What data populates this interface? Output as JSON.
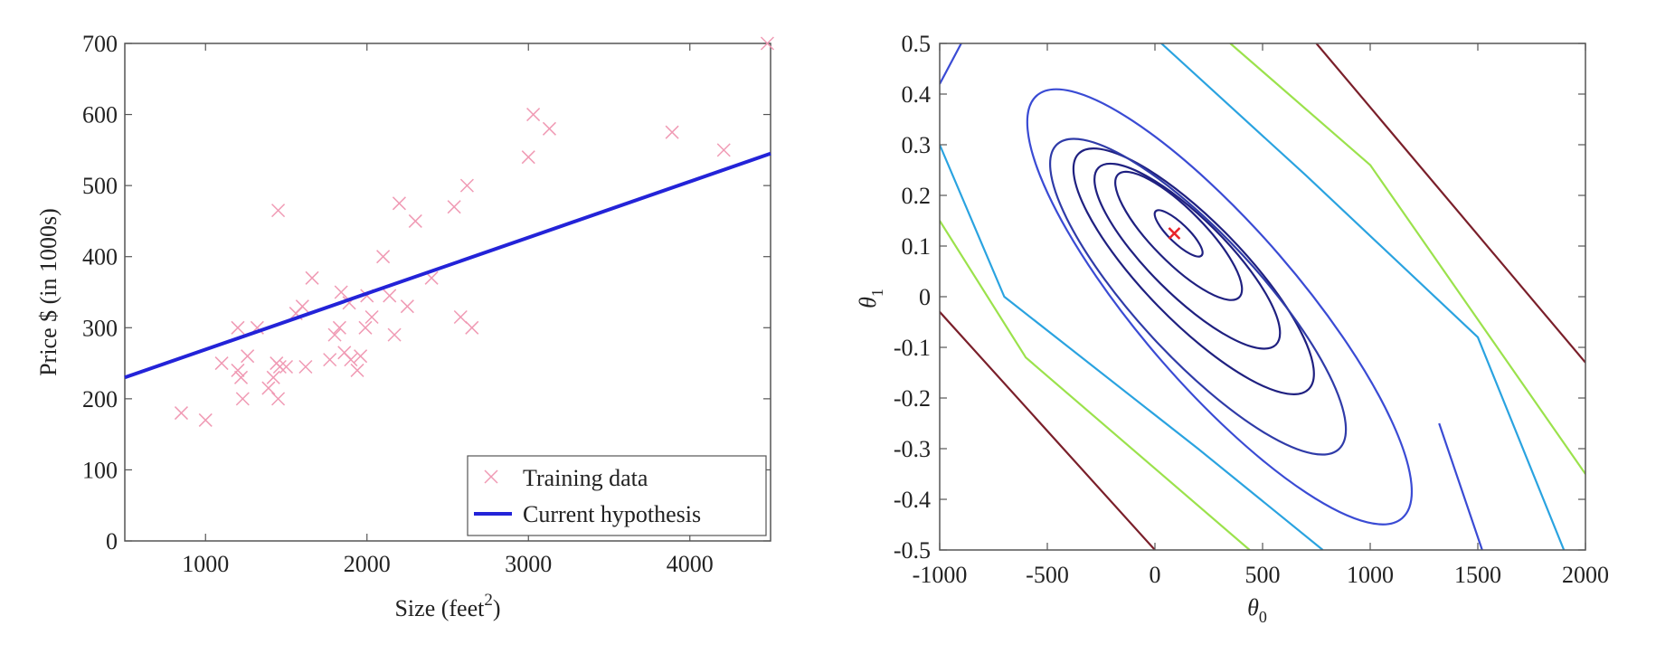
{
  "chart_data": [
    {
      "type": "scatter",
      "title": "",
      "xlabel": "Size (feet",
      "xlabel_sup": "2",
      "xlabel_close": ")",
      "ylabel": "Price $ (in 1000s)",
      "xlim": [
        500,
        4500
      ],
      "ylim": [
        0,
        700
      ],
      "xticks": [
        1000,
        2000,
        3000,
        4000
      ],
      "yticks": [
        0,
        100,
        200,
        300,
        400,
        500,
        600,
        700
      ],
      "legend": {
        "position": "bottom-right",
        "entries": [
          "Training data",
          "Current hypothesis"
        ]
      },
      "colors": {
        "data": "#f09ab4",
        "line": "#2323d8"
      },
      "series": [
        {
          "name": "Training data",
          "marker": "x",
          "points": [
            [
              850,
              180
            ],
            [
              1000,
              170
            ],
            [
              1100,
              250
            ],
            [
              1200,
              240
            ],
            [
              1200,
              300
            ],
            [
              1220,
              230
            ],
            [
              1230,
              200
            ],
            [
              1260,
              260
            ],
            [
              1320,
              300
            ],
            [
              1390,
              215
            ],
            [
              1420,
              230
            ],
            [
              1440,
              250
            ],
            [
              1450,
              200
            ],
            [
              1450,
              465
            ],
            [
              1460,
              245
            ],
            [
              1500,
              245
            ],
            [
              1560,
              320
            ],
            [
              1600,
              330
            ],
            [
              1620,
              245
            ],
            [
              1660,
              370
            ],
            [
              1770,
              255
            ],
            [
              1800,
              290
            ],
            [
              1830,
              300
            ],
            [
              1840,
              350
            ],
            [
              1860,
              265
            ],
            [
              1890,
              335
            ],
            [
              1900,
              255
            ],
            [
              1940,
              240
            ],
            [
              1960,
              260
            ],
            [
              1990,
              300
            ],
            [
              2000,
              345
            ],
            [
              2030,
              315
            ],
            [
              2100,
              400
            ],
            [
              2140,
              345
            ],
            [
              2170,
              290
            ],
            [
              2200,
              475
            ],
            [
              2250,
              330
            ],
            [
              2300,
              450
            ],
            [
              2400,
              370
            ],
            [
              2540,
              470
            ],
            [
              2580,
              315
            ],
            [
              2620,
              500
            ],
            [
              2650,
              300
            ],
            [
              3000,
              540
            ],
            [
              3030,
              600
            ],
            [
              3130,
              580
            ],
            [
              3890,
              575
            ],
            [
              4210,
              550
            ],
            [
              4480,
              700
            ]
          ]
        },
        {
          "name": "Current hypothesis",
          "type": "line",
          "x": [
            500,
            4500
          ],
          "y": [
            230,
            545
          ]
        }
      ]
    },
    {
      "type": "contour",
      "title": "",
      "xlabel": "θ",
      "xlabel_sub": "0",
      "ylabel": "θ",
      "ylabel_sub": "1",
      "xlim": [
        -1000,
        2000
      ],
      "ylim": [
        -0.5,
        0.5
      ],
      "xticks": [
        -1000,
        -500,
        0,
        500,
        1000,
        1500,
        2000
      ],
      "yticks": [
        -0.5,
        -0.4,
        -0.3,
        -0.2,
        -0.1,
        0,
        0.1,
        0.2,
        0.3,
        0.4,
        0.5
      ],
      "minimum": {
        "x": 90,
        "y": 0.125,
        "marker": "x",
        "color": "#e8232a"
      },
      "colors": {
        "inner": "#1f2080",
        "blue": "#3a4bd4",
        "cyan": "#2aa3e0",
        "green": "#9be24c",
        "red": "#7a1f2a"
      },
      "ellipse_levels": [
        {
          "center": [
            110,
            0.125
          ],
          "x_extent": [
            0,
            220
          ],
          "y_extent": [
            0.08,
            0.17
          ],
          "color": "#1f2080"
        },
        {
          "center": [
            110,
            0.12
          ],
          "x_extent": [
            -150,
            430
          ],
          "y_extent": [
            0.0,
            0.25
          ],
          "color": "#1f2080"
        },
        {
          "center": [
            150,
            0.08
          ],
          "x_extent": [
            -250,
            600
          ],
          "y_extent": [
            -0.06,
            0.3
          ],
          "color": "#1f2080"
        },
        {
          "center": [
            180,
            0.05
          ],
          "x_extent": [
            -330,
            770
          ],
          "y_extent": [
            -0.12,
            0.36
          ],
          "color": "#1f2080"
        },
        {
          "center": [
            200,
            0.0
          ],
          "x_extent": [
            -480,
            870
          ],
          "y_extent": [
            -0.18,
            0.44
          ],
          "color": "#2f3ba8"
        },
        {
          "center": [
            300,
            -0.02
          ],
          "x_extent": [
            -620,
            1130
          ],
          "y_extent": [
            -0.37,
            0.49
          ],
          "color": "#3a4bd4"
        }
      ],
      "line_levels": [
        {
          "color": "#3a4bd4",
          "lines": [
            [
              [
                -1000,
                0.42
              ],
              [
                -900,
                0.5
              ]
            ],
            [
              [
                1320,
                -0.25
              ],
              [
                1520,
                -0.5
              ]
            ]
          ]
        },
        {
          "color": "#2aa3e0",
          "lines": [
            [
              [
                -1000,
                0.3
              ],
              [
                -700,
                0.0
              ],
              [
                200,
                -0.3
              ],
              [
                780,
                -0.5
              ]
            ],
            [
              [
                30,
                0.5
              ],
              [
                700,
                0.24
              ],
              [
                1500,
                -0.08
              ],
              [
                1900,
                -0.5
              ]
            ]
          ]
        },
        {
          "color": "#9be24c",
          "lines": [
            [
              [
                -1000,
                0.15
              ],
              [
                -600,
                -0.12
              ],
              [
                440,
                -0.5
              ]
            ],
            [
              [
                350,
                0.5
              ],
              [
                1000,
                0.26
              ],
              [
                2000,
                -0.35
              ]
            ]
          ]
        },
        {
          "color": "#7a1f2a",
          "lines": [
            [
              [
                -1000,
                -0.03
              ],
              [
                0,
                -0.5
              ]
            ],
            [
              [
                750,
                0.5
              ],
              [
                2000,
                -0.13
              ]
            ]
          ]
        }
      ]
    }
  ]
}
